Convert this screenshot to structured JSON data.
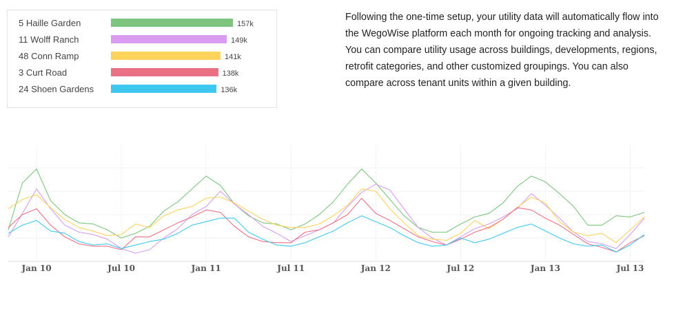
{
  "intro_text": "Following the one-time setup, your utility data will automatically flow into the WegoWise platform each month for ongoing tracking and analysis. You can compare utility usage across buildings, developments, regions, retrofit categories, and other customized groupings. You can also compare across tenant units within a given building.",
  "bar_chart": {
    "type": "bar",
    "orientation": "horizontal",
    "categories": [
      "5 Haille Garden",
      "11 Wolff Ranch",
      "48 Conn Ramp",
      "3 Curt Road",
      "24 Shoen Gardens"
    ],
    "values": [
      157,
      149,
      141,
      138,
      136
    ],
    "value_labels": [
      "157k",
      "149k",
      "141k",
      "138k",
      "136k"
    ],
    "colors": [
      "#7dc57f",
      "#d99cf0",
      "#fdd35c",
      "#ea7085",
      "#3ec8ef"
    ],
    "xlim": [
      0,
      157
    ]
  },
  "chart_data": {
    "type": "line",
    "x_ticks": [
      "Jan 10",
      "Jul 10",
      "Jan 11",
      "Jul 11",
      "Jan 12",
      "Jul 12",
      "Jan 13",
      "Jul 13"
    ],
    "x_start": "Nov 09",
    "x_end": "Sep 13",
    "grid": true,
    "legend": "none",
    "ylim": [
      0,
      100
    ],
    "series": [
      {
        "color": "#7dc57f",
        "values": [
          27,
          67,
          79,
          52,
          40,
          33,
          32,
          27,
          20,
          24,
          30,
          43,
          51,
          62,
          73,
          65,
          49,
          39,
          33,
          32,
          27,
          32,
          40,
          51,
          66,
          79,
          67,
          53,
          39,
          29,
          25,
          25,
          32,
          38,
          41,
          50,
          64,
          73,
          68,
          58,
          47,
          31,
          31,
          39,
          38,
          42
        ]
      },
      {
        "color": "#d99cf0",
        "values": [
          21,
          41,
          62,
          45,
          31,
          25,
          23,
          19,
          11,
          7,
          10,
          20,
          28,
          40,
          47,
          60,
          49,
          40,
          30,
          24,
          17,
          22,
          27,
          33,
          47,
          59,
          66,
          61,
          45,
          29,
          20,
          14,
          21,
          28,
          32,
          38,
          45,
          58,
          48,
          37,
          25,
          17,
          15,
          11,
          23,
          37
        ]
      },
      {
        "color": "#fdd35c",
        "values": [
          45,
          53,
          57,
          46,
          36,
          29,
          26,
          22,
          23,
          32,
          29,
          39,
          44,
          47,
          54,
          55,
          50,
          43,
          36,
          31,
          29,
          29,
          32,
          39,
          48,
          62,
          60,
          45,
          33,
          22,
          19,
          18,
          24,
          35,
          28,
          36,
          46,
          55,
          50,
          34,
          25,
          22,
          24,
          16,
          27,
          38
        ]
      },
      {
        "color": "#ea7085",
        "values": [
          29,
          40,
          45,
          31,
          21,
          15,
          13,
          13,
          10,
          21,
          21,
          27,
          33,
          38,
          44,
          42,
          30,
          21,
          17,
          16,
          16,
          25,
          27,
          33,
          40,
          54,
          41,
          35,
          28,
          21,
          17,
          14,
          19,
          25,
          29,
          36,
          46,
          44,
          37,
          31,
          23,
          15,
          12,
          8,
          16,
          22
        ]
      },
      {
        "color": "#3ec8ef",
        "values": [
          24,
          31,
          35,
          26,
          24,
          17,
          14,
          15,
          11,
          14,
          17,
          19,
          24,
          31,
          34,
          37,
          37,
          25,
          19,
          14,
          13,
          16,
          21,
          26,
          33,
          39,
          34,
          29,
          22,
          16,
          13,
          14,
          20,
          16,
          19,
          24,
          29,
          32,
          26,
          20,
          15,
          13,
          14,
          8,
          14,
          23
        ]
      }
    ]
  }
}
